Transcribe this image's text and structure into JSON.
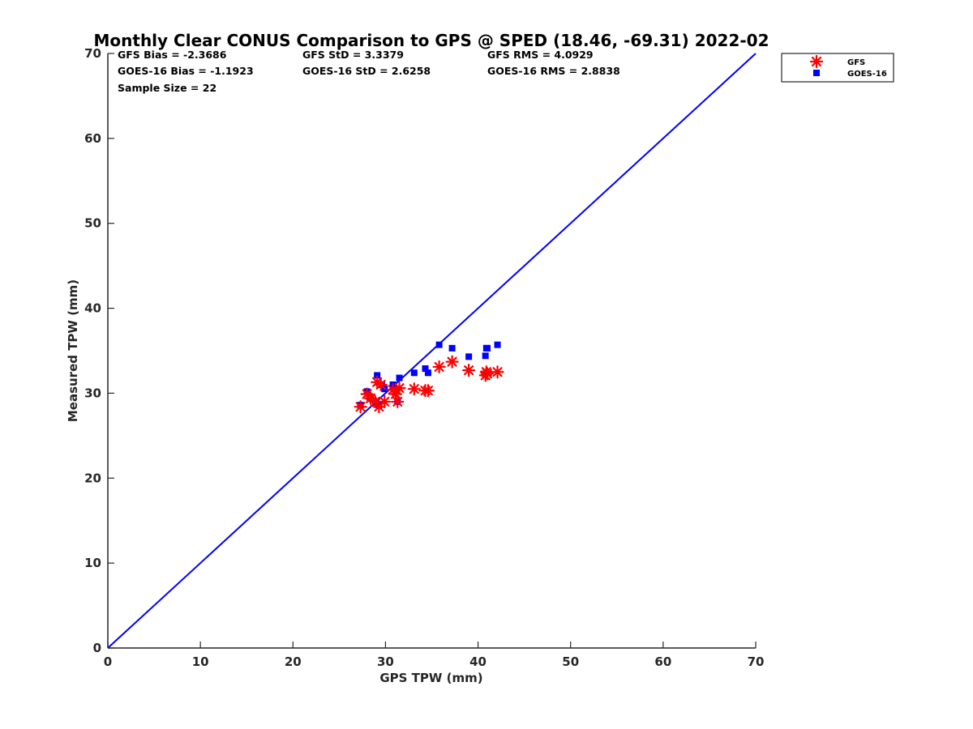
{
  "chart_data": {
    "type": "scatter",
    "title": "Monthly Clear CONUS Comparison to GPS @ SPED (18.46, -69.31) 2022-02",
    "xlabel": "GPS TPW (mm)",
    "ylabel": "Measured TPW (mm)",
    "xlim": [
      0,
      70
    ],
    "ylim": [
      0,
      70
    ],
    "xticks": [
      "0",
      "10",
      "20",
      "30",
      "40",
      "50",
      "60",
      "70"
    ],
    "yticks": [
      "0",
      "10",
      "20",
      "30",
      "40",
      "50",
      "60",
      "70"
    ],
    "grid": false,
    "legend_position": "top-right",
    "reference_line": {
      "x": [
        0,
        70
      ],
      "y": [
        0,
        70
      ],
      "color": "#0000ff"
    },
    "stats": {
      "gfs_bias": "GFS Bias = -2.3686",
      "gfs_std": "GFS StD = 3.3379",
      "gfs_rms": "GFS RMS = 4.0929",
      "goes_bias": "GOES-16 Bias = -1.1923",
      "goes_std": "GOES-16 StD = 2.6258",
      "goes_rms": "GOES-16 RMS = 2.8838",
      "sample_size": "Sample Size = 22"
    },
    "series": [
      {
        "name": "GFS",
        "marker": "asterisk",
        "color": "#ff0000",
        "points": [
          [
            27.3,
            28.4
          ],
          [
            28.0,
            29.9
          ],
          [
            28.4,
            29.4
          ],
          [
            28.9,
            29.0
          ],
          [
            29.1,
            31.3
          ],
          [
            29.3,
            28.4
          ],
          [
            29.5,
            31.0
          ],
          [
            29.9,
            29.0
          ],
          [
            30.8,
            30.4
          ],
          [
            31.1,
            29.9
          ],
          [
            31.3,
            29.0
          ],
          [
            31.5,
            30.6
          ],
          [
            33.1,
            30.5
          ],
          [
            34.3,
            30.3
          ],
          [
            34.6,
            30.3
          ],
          [
            35.8,
            33.1
          ],
          [
            37.2,
            33.7
          ],
          [
            39.0,
            32.7
          ],
          [
            40.8,
            32.1
          ],
          [
            40.9,
            32.5
          ],
          [
            41.0,
            32.3
          ],
          [
            42.1,
            32.5
          ]
        ]
      },
      {
        "name": "GOES-16",
        "marker": "square",
        "color": "#0000ff",
        "points": [
          [
            27.3,
            28.6
          ],
          [
            28.0,
            30.2
          ],
          [
            28.4,
            29.4
          ],
          [
            28.9,
            28.9
          ],
          [
            29.1,
            32.1
          ],
          [
            29.3,
            28.6
          ],
          [
            29.6,
            31.0
          ],
          [
            29.9,
            30.5
          ],
          [
            30.8,
            31.0
          ],
          [
            31.1,
            30.4
          ],
          [
            31.3,
            29.0
          ],
          [
            31.5,
            31.8
          ],
          [
            33.1,
            32.4
          ],
          [
            34.3,
            32.9
          ],
          [
            34.6,
            32.4
          ],
          [
            35.8,
            35.7
          ],
          [
            37.2,
            35.3
          ],
          [
            39.0,
            34.3
          ],
          [
            40.8,
            34.4
          ],
          [
            40.9,
            35.3
          ],
          [
            41.0,
            35.3
          ],
          [
            42.1,
            35.7
          ]
        ]
      }
    ]
  }
}
